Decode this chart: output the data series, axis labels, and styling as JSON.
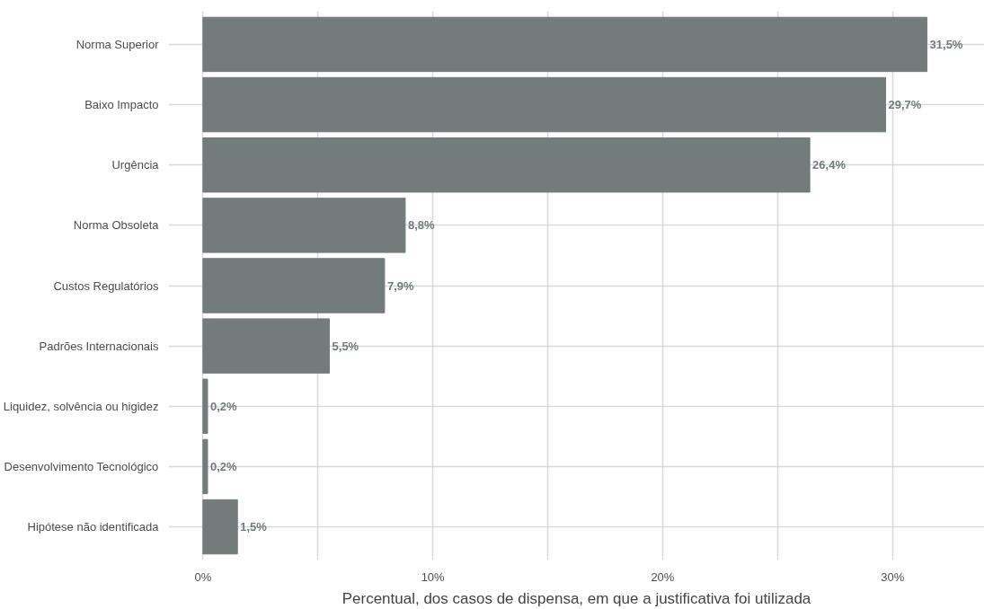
{
  "chart_data": {
    "type": "bar",
    "orientation": "horizontal",
    "categories": [
      "Norma Superior",
      "Baixo Impacto",
      "Urgência",
      "Norma Obsoleta",
      "Custos Regulatórios",
      "Padrões Internacionais",
      "Liquidez, solvência ou higidez",
      "Desenvolvimento Tecnológico",
      "Hipótese não identificada"
    ],
    "values": [
      31.5,
      29.7,
      26.4,
      8.8,
      7.9,
      5.5,
      0.2,
      0.2,
      1.5
    ],
    "value_labels": [
      "31,5%",
      "29,7%",
      "26,4%",
      "8,8%",
      "7,9%",
      "5,5%",
      "0,2%",
      "0,2%",
      "1,5%"
    ],
    "color": "#737b7b",
    "xlabel": "Percentual, dos casos de dispensa, em que a justificativa foi utilizada",
    "xlim": [
      -1.5,
      34
    ],
    "xticks": [
      {
        "value": 0,
        "label": "0%"
      },
      {
        "value": 5,
        "label": null
      },
      {
        "value": 10,
        "label": "10%"
      },
      {
        "value": 15,
        "label": null
      },
      {
        "value": 20,
        "label": "20%"
      },
      {
        "value": 25,
        "label": null
      },
      {
        "value": 30,
        "label": "30%"
      }
    ],
    "grid": true
  }
}
